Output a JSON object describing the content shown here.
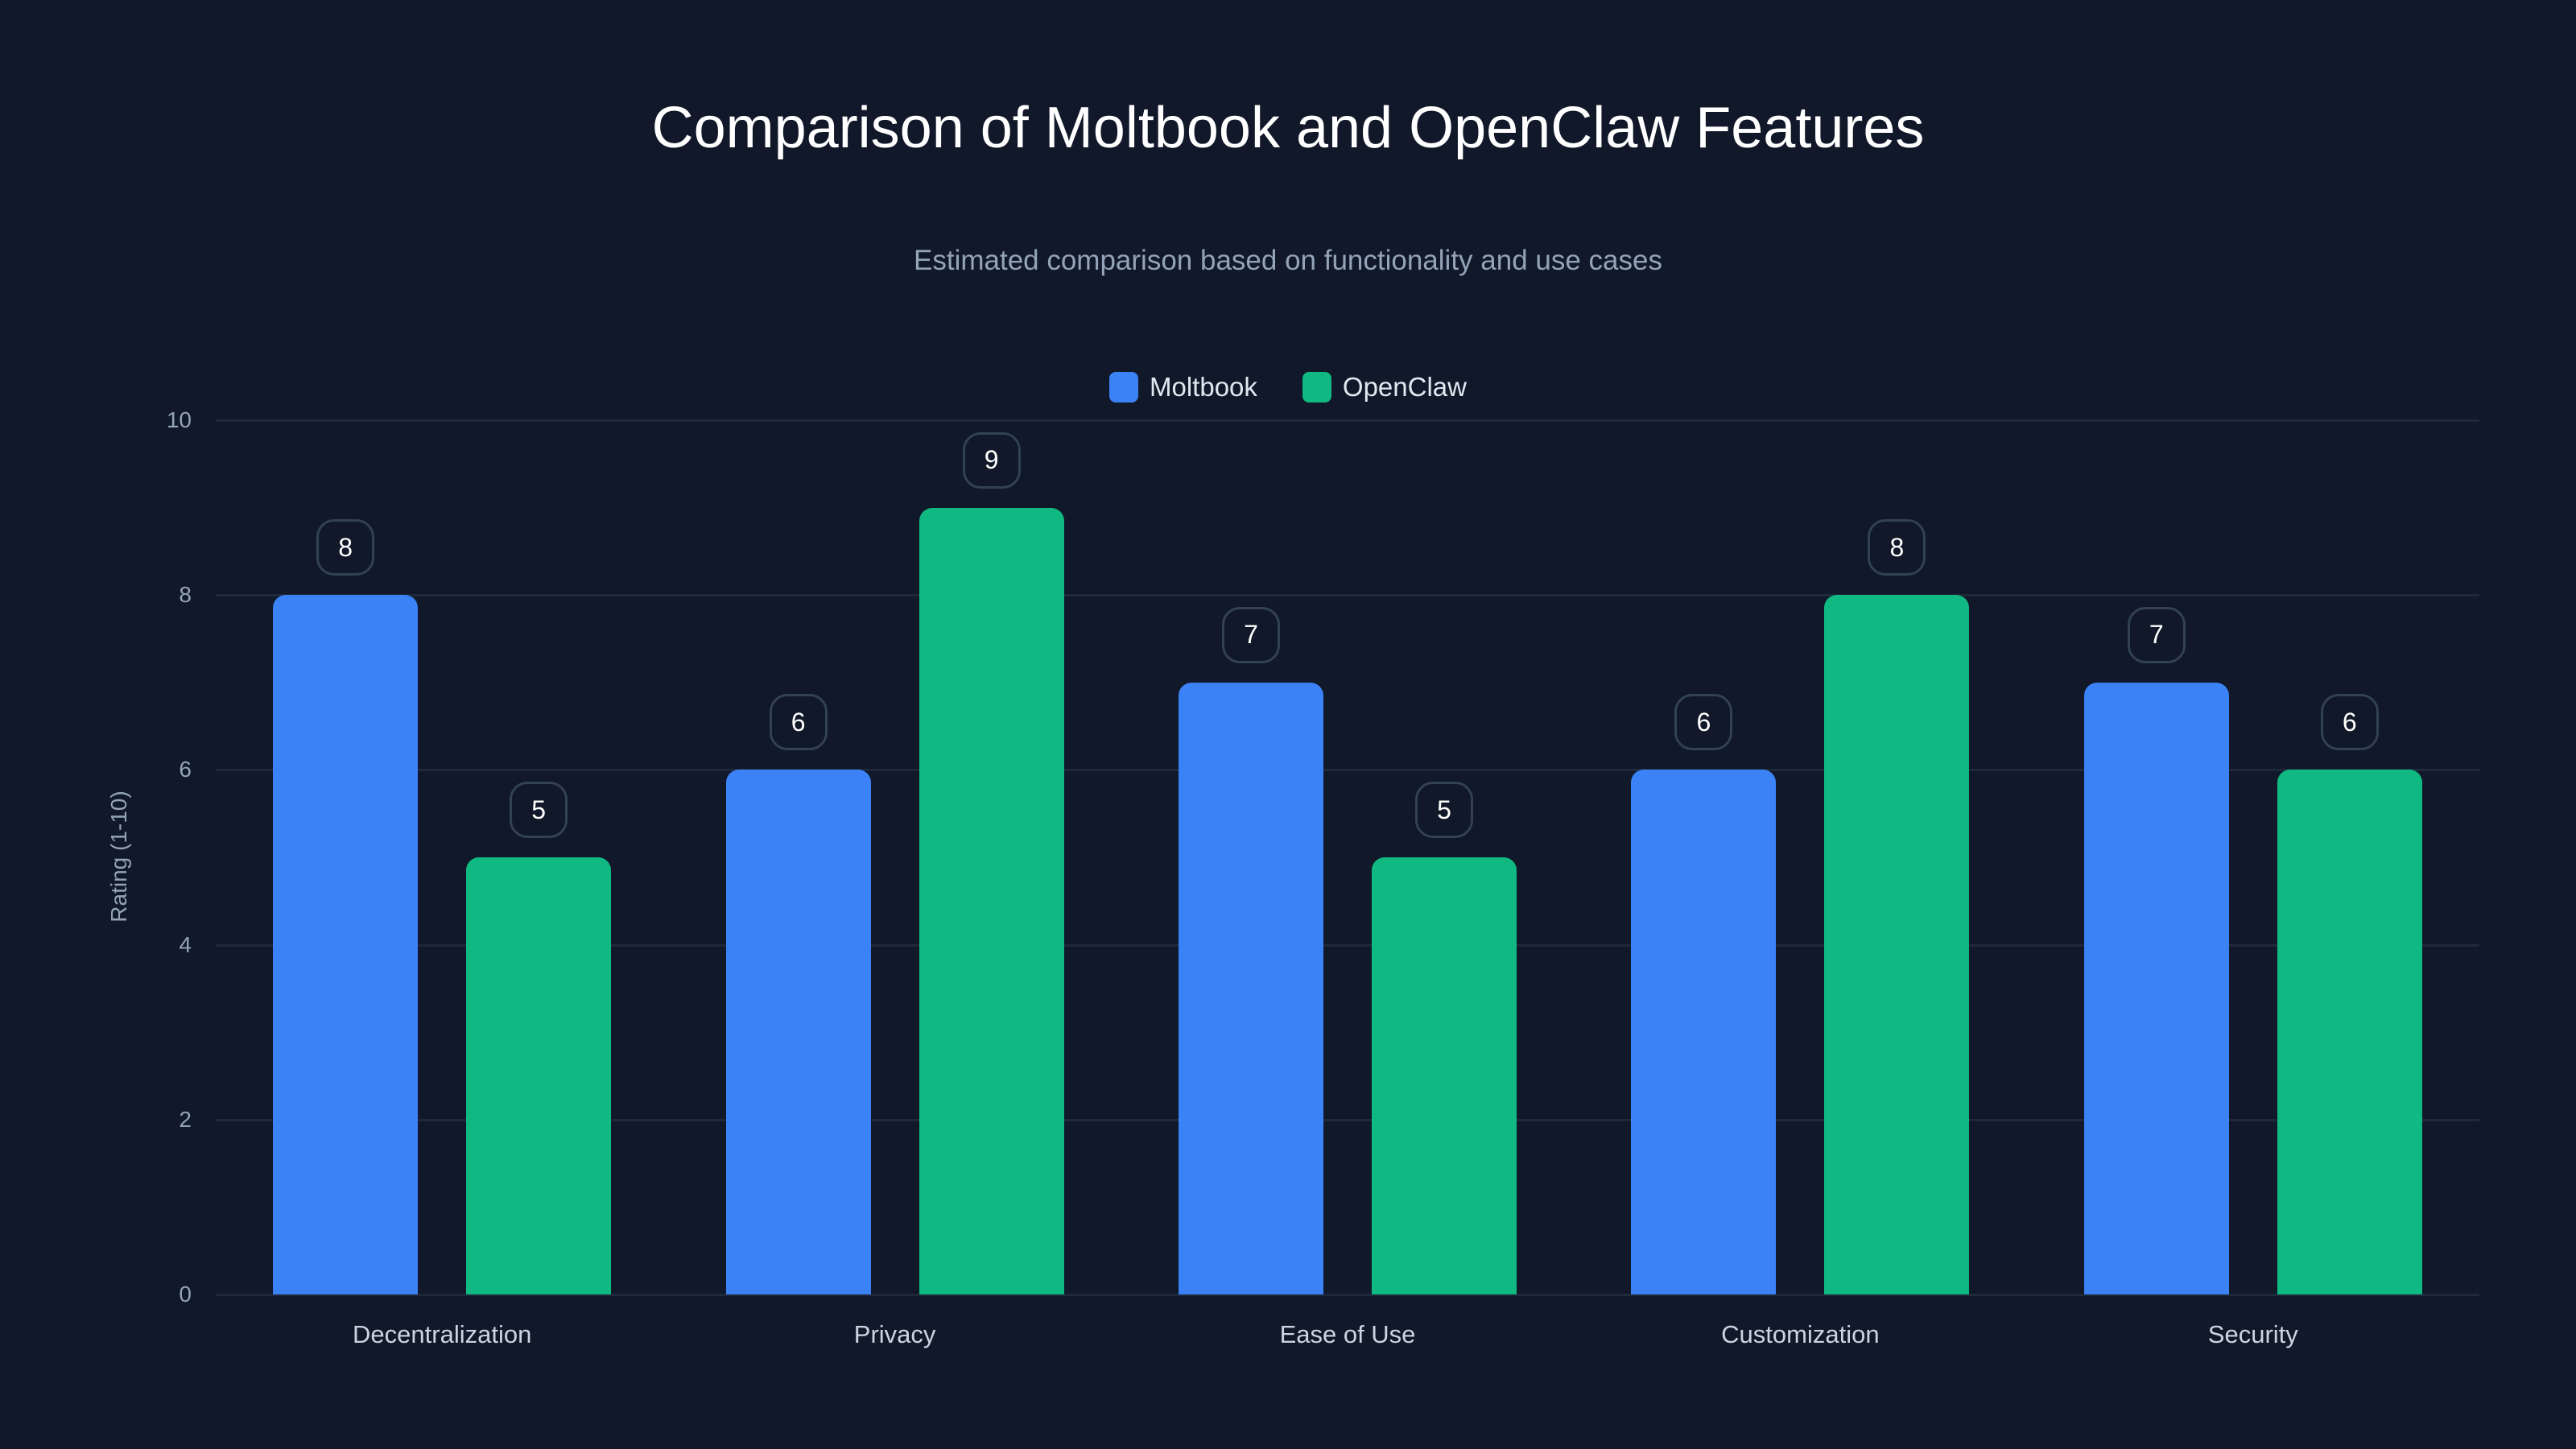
{
  "chart_data": {
    "type": "bar",
    "title": "Comparison of Moltbook and OpenClaw Features",
    "subtitle": "Estimated comparison based on functionality and use cases",
    "xlabel": "",
    "ylabel": "Rating (1-10)",
    "ylim": [
      0,
      10
    ],
    "yticks": [
      0,
      2,
      4,
      6,
      8,
      10
    ],
    "grid": true,
    "legend_position": "top",
    "categories": [
      "Decentralization",
      "Privacy",
      "Ease of Use",
      "Customization",
      "Security"
    ],
    "series": [
      {
        "name": "Moltbook",
        "color": "#3b82f6",
        "values": [
          8,
          6,
          7,
          6,
          7
        ]
      },
      {
        "name": "OpenClaw",
        "color": "#10b981",
        "values": [
          5,
          9,
          5,
          8,
          6
        ]
      }
    ],
    "data_labels": true
  },
  "header": {
    "title": "Comparison of Moltbook and OpenClaw Features",
    "subtitle": "Estimated comparison based on functionality and use cases"
  },
  "legend": {
    "items": [
      {
        "label": "Moltbook",
        "color": "#3b82f6"
      },
      {
        "label": "OpenClaw",
        "color": "#10b981"
      }
    ]
  },
  "axis": {
    "ylabel": "Rating (1-10)",
    "yticks": [
      "0",
      "2",
      "4",
      "6",
      "8",
      "10"
    ]
  }
}
